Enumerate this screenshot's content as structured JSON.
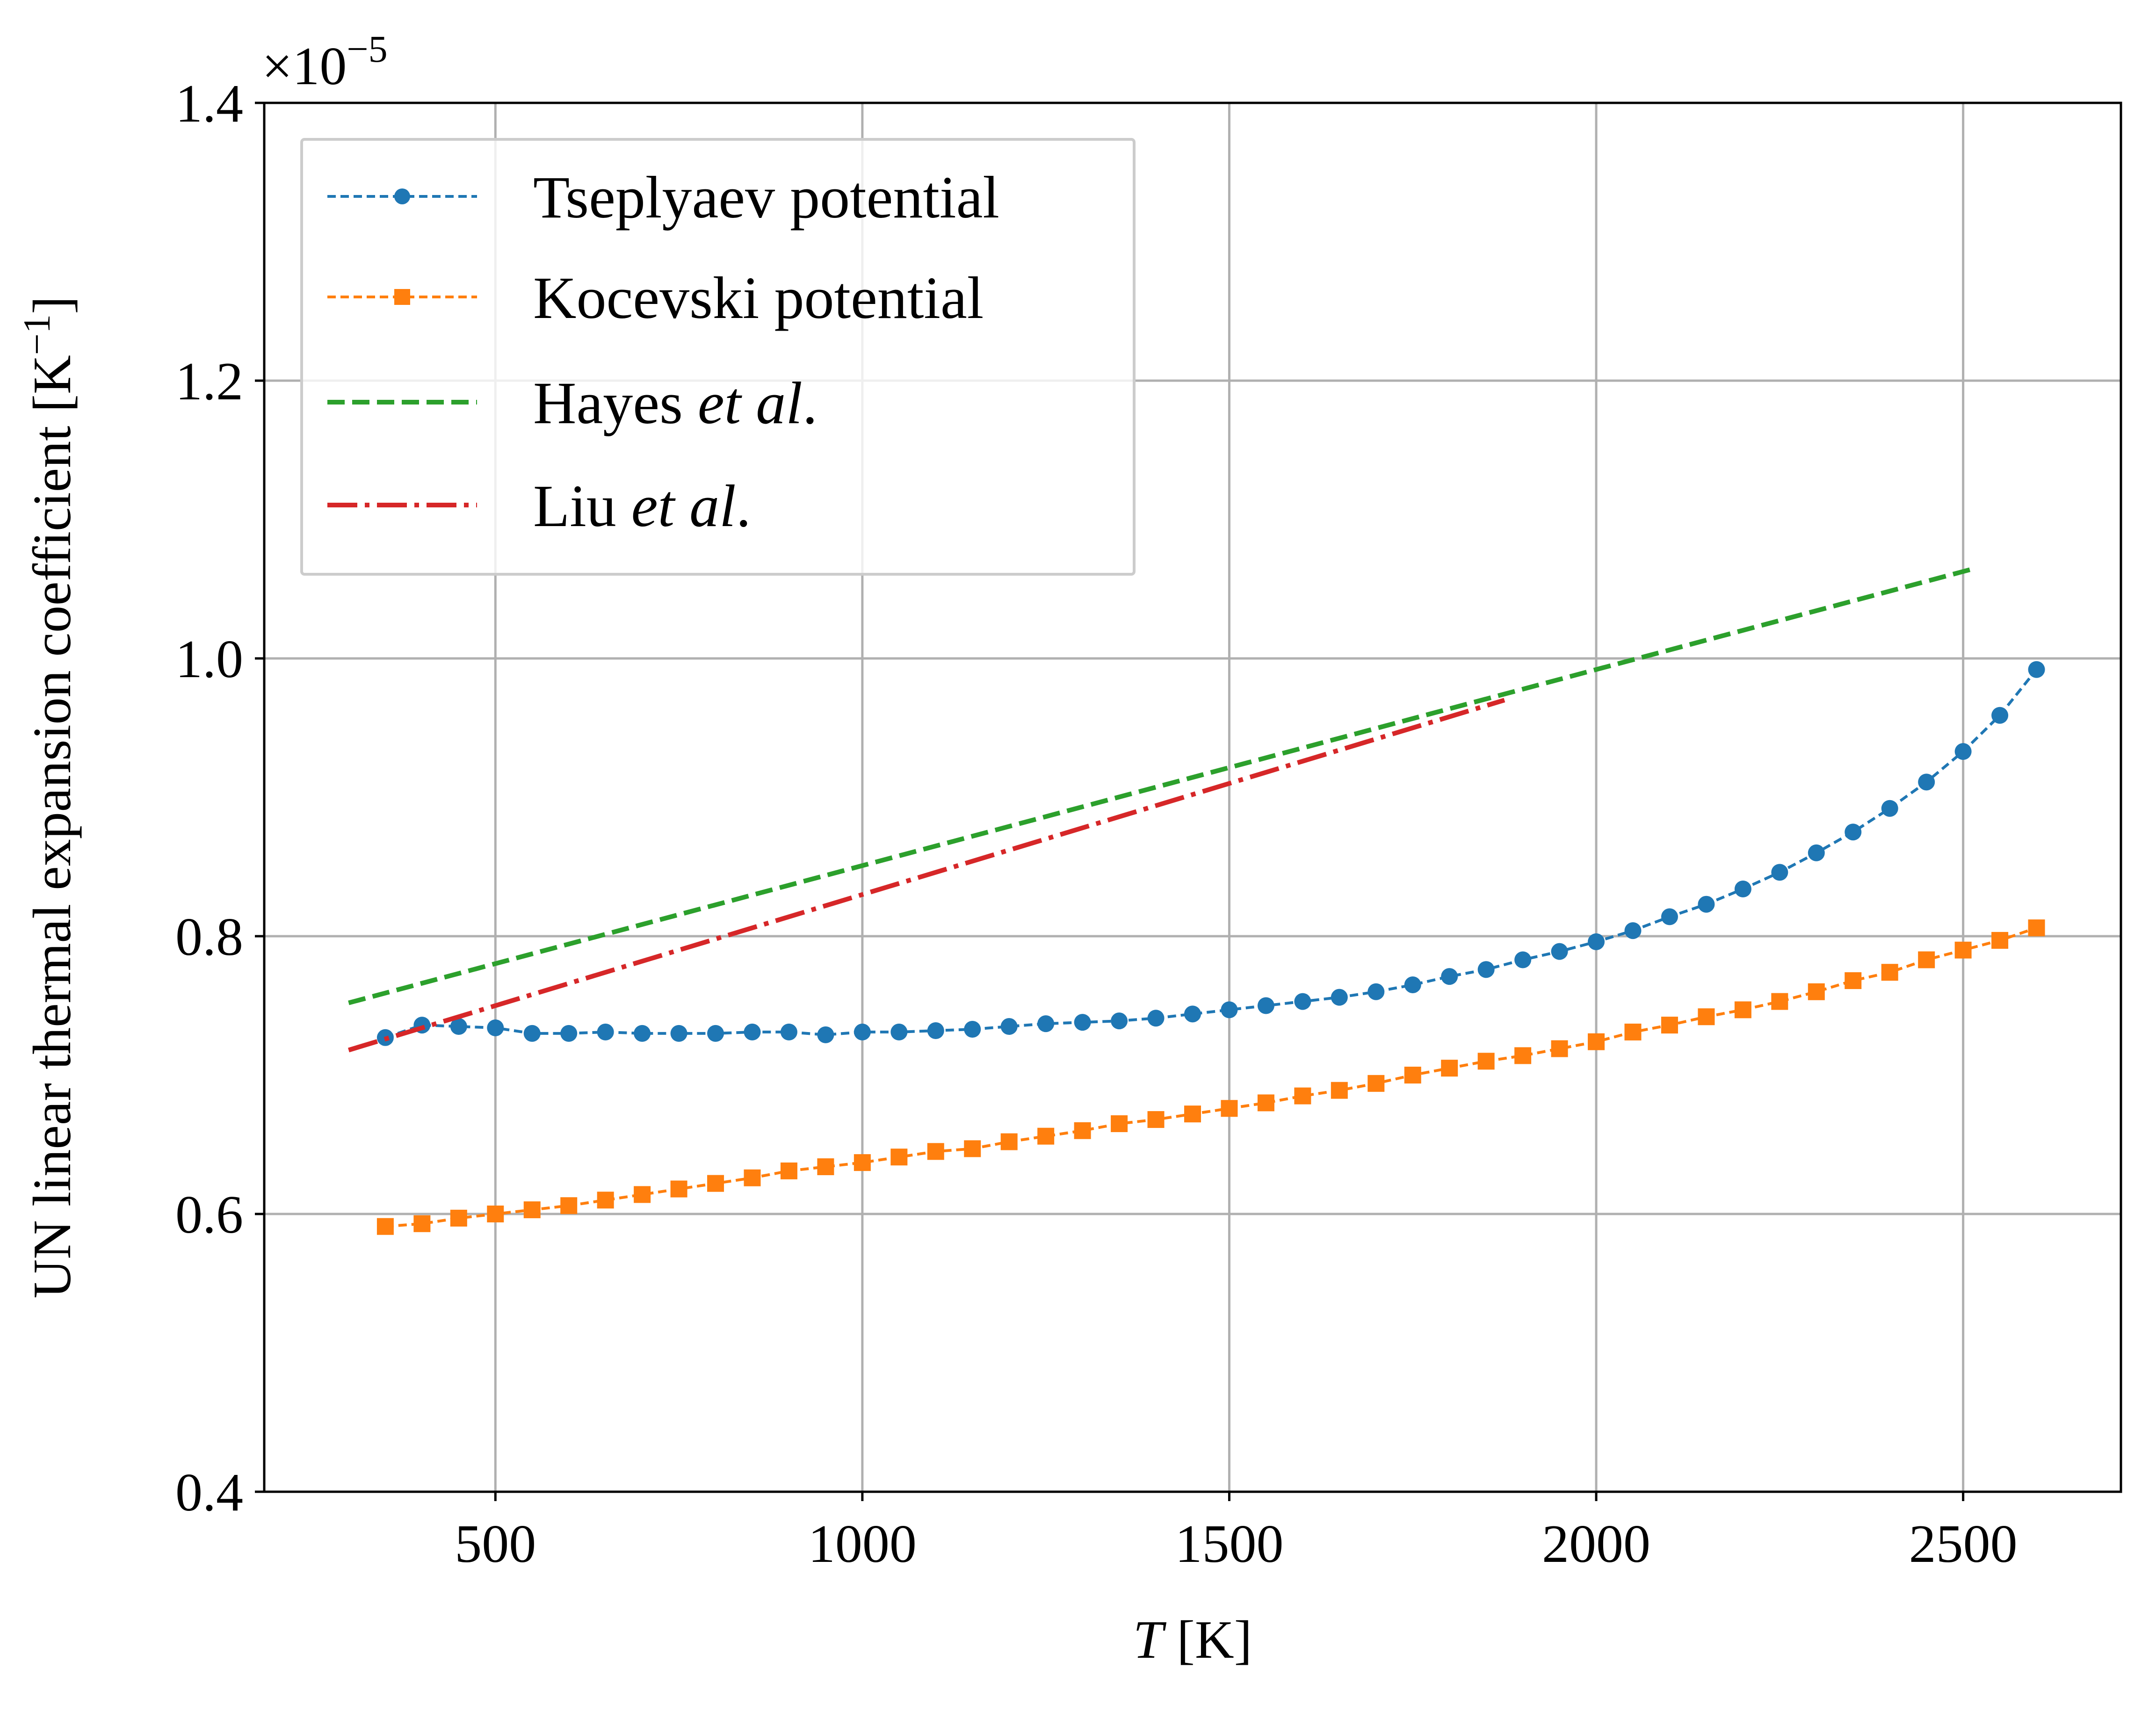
{
  "chart_data": {
    "type": "line",
    "xlabel_var": "T",
    "xlabel_unit": "[K]",
    "ylabel_main": "UN linear thermal expansion coefficient [K",
    "ylabel_sup": "−1",
    "ylabel_close": "]",
    "y_offset_base": "×10",
    "y_offset_exp": "−5",
    "xlim": [
      185,
      2715
    ],
    "ylim": [
      0.4,
      1.4
    ],
    "x_ticks": [
      500,
      1000,
      1500,
      2000,
      2500
    ],
    "x_tick_labels": [
      "500",
      "1000",
      "1500",
      "2000",
      "2500"
    ],
    "y_ticks": [
      0.4,
      0.6,
      0.8,
      1.0,
      1.2,
      1.4
    ],
    "y_tick_labels": [
      "0.4",
      "0.6",
      "0.8",
      "1.0",
      "1.2",
      "1.4"
    ],
    "grid": true,
    "legend_position": "upper-left",
    "series": [
      {
        "name": "Tseplyaev potential",
        "color": "#1f77b4",
        "style": "dashed-circle-markers",
        "x": [
          350,
          400,
          450,
          500,
          550,
          600,
          650,
          700,
          750,
          800,
          850,
          900,
          950,
          1000,
          1050,
          1100,
          1150,
          1200,
          1250,
          1300,
          1350,
          1400,
          1450,
          1500,
          1550,
          1600,
          1650,
          1700,
          1750,
          1800,
          1850,
          1900,
          1950,
          2000,
          2050,
          2100,
          2150,
          2200,
          2250,
          2300,
          2350,
          2400,
          2450,
          2500,
          2550,
          2600
        ],
        "y": [
          0.727,
          0.736,
          0.735,
          0.734,
          0.73,
          0.73,
          0.731,
          0.73,
          0.73,
          0.73,
          0.731,
          0.731,
          0.729,
          0.731,
          0.731,
          0.732,
          0.733,
          0.735,
          0.737,
          0.738,
          0.739,
          0.741,
          0.744,
          0.747,
          0.75,
          0.753,
          0.756,
          0.76,
          0.765,
          0.771,
          0.776,
          0.783,
          0.789,
          0.796,
          0.804,
          0.814,
          0.823,
          0.834,
          0.846,
          0.86,
          0.875,
          0.892,
          0.911,
          0.933,
          0.959,
          0.992
        ]
      },
      {
        "name": "Kocevski potential",
        "color": "#ff7f0e",
        "style": "dashed-square-markers",
        "x": [
          350,
          400,
          450,
          500,
          550,
          600,
          650,
          700,
          750,
          800,
          850,
          900,
          950,
          1000,
          1050,
          1100,
          1150,
          1200,
          1250,
          1300,
          1350,
          1400,
          1450,
          1500,
          1550,
          1600,
          1650,
          1700,
          1750,
          1800,
          1850,
          1900,
          1950,
          2000,
          2050,
          2100,
          2150,
          2200,
          2250,
          2300,
          2350,
          2400,
          2450,
          2500,
          2550,
          2600
        ],
        "y": [
          0.591,
          0.593,
          0.597,
          0.6,
          0.603,
          0.606,
          0.61,
          0.614,
          0.618,
          0.622,
          0.626,
          0.631,
          0.634,
          0.637,
          0.641,
          0.645,
          0.647,
          0.652,
          0.656,
          0.66,
          0.665,
          0.668,
          0.672,
          0.676,
          0.68,
          0.685,
          0.689,
          0.694,
          0.7,
          0.705,
          0.71,
          0.714,
          0.719,
          0.724,
          0.731,
          0.736,
          0.742,
          0.747,
          0.753,
          0.76,
          0.768,
          0.774,
          0.783,
          0.79,
          0.797,
          0.806
        ]
      },
      {
        "name": "Hayes et al.",
        "name_plain": "Hayes ",
        "name_italic": "et al",
        "name_end": ".",
        "color": "#2ca02c",
        "style": "dashed",
        "x": [
          300,
          2510
        ],
        "y": [
          0.752,
          1.064
        ]
      },
      {
        "name": "Liu et al.",
        "name_plain": "Liu ",
        "name_italic": "et al",
        "name_end": ".",
        "color": "#d62728",
        "style": "dashdot",
        "x": [
          300,
          1875
        ],
        "y": [
          0.718,
          0.97
        ]
      }
    ]
  }
}
